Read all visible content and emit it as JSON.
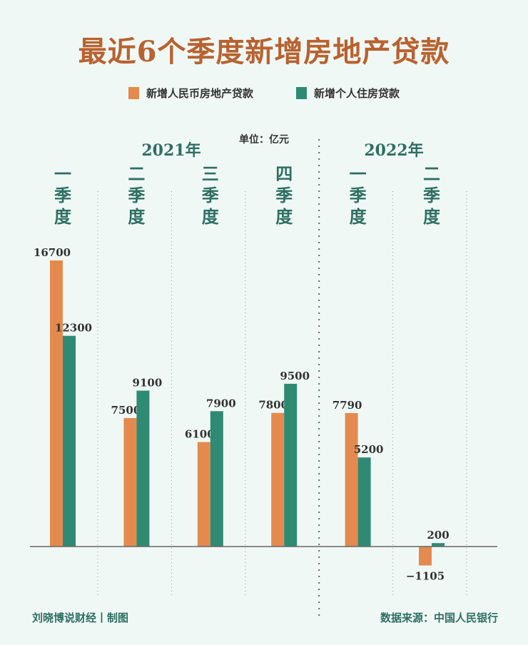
{
  "title": "最近6个季度新增房地产贷款",
  "unit": "单位：亿元",
  "footer": {
    "left": "刘晓博说财经丨制图",
    "right": "数据来源：中国人民银行"
  },
  "colors": {
    "orange": "#e58a4e",
    "teal": "#2f8a74",
    "title": "#b8622f",
    "label": "#2e6f62"
  },
  "chart_data": {
    "type": "bar",
    "title": "最近6个季度新增房地产贷款",
    "years": [
      {
        "label": "2021年",
        "quarters": 4
      },
      {
        "label": "2022年",
        "quarters": 2
      }
    ],
    "categories": [
      "一季度",
      "二季度",
      "三季度",
      "四季度",
      "一季度",
      "二季度"
    ],
    "series": [
      {
        "name": "新增人民币房地产贷款",
        "color": "#e58a4e",
        "values": [
          16700,
          7500,
          6100,
          7800,
          7790,
          -1105
        ]
      },
      {
        "name": "新增个人住房贷款",
        "color": "#2f8a74",
        "values": [
          12300,
          9100,
          7900,
          9500,
          5200,
          200
        ]
      }
    ],
    "ylabel": "亿元",
    "ylim": [
      -1105,
      16700
    ],
    "legend": "top-center",
    "grid": false
  }
}
